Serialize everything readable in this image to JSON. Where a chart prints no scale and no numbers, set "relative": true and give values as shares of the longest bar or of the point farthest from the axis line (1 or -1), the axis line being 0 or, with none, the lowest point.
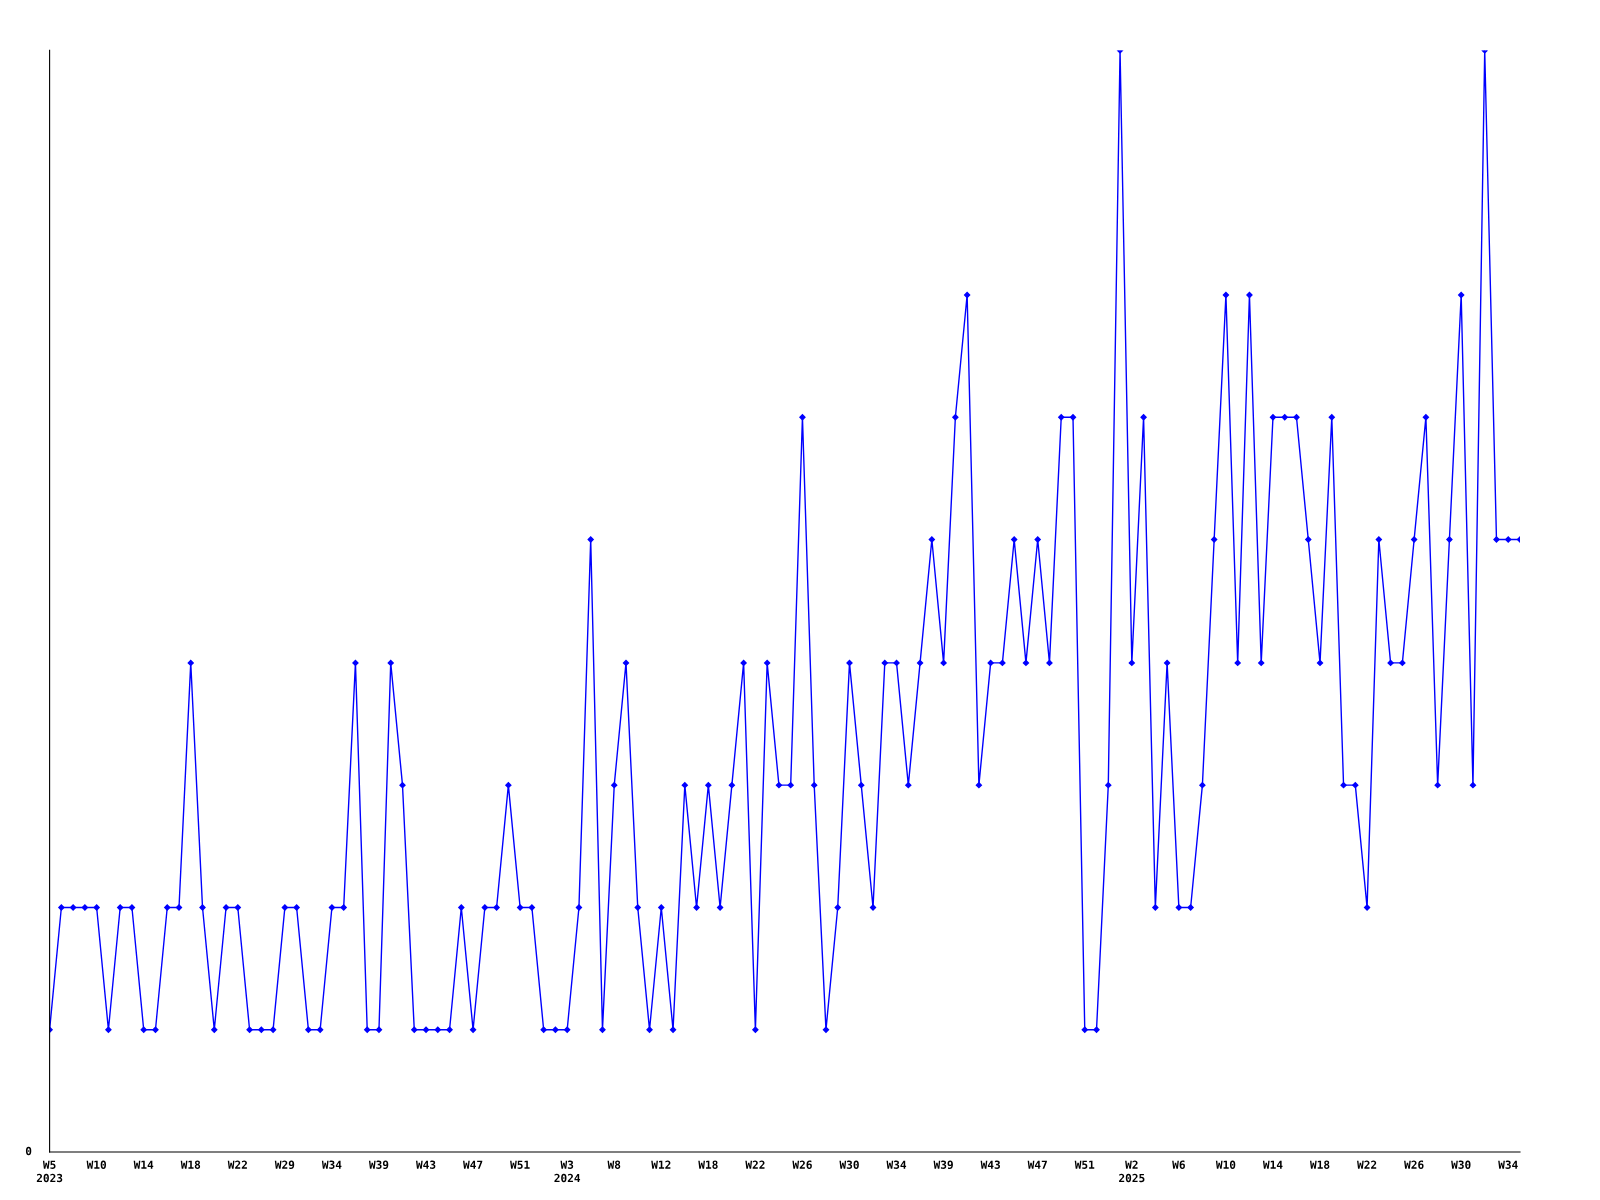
{
  "chart_data": {
    "type": "line",
    "relative": true,
    "categories": [
      "W5\n2023",
      null,
      null,
      null,
      "W10",
      null,
      null,
      null,
      "W14",
      null,
      null,
      null,
      "W18",
      null,
      null,
      null,
      "W22",
      null,
      null,
      null,
      "W29",
      null,
      null,
      null,
      "W34",
      null,
      null,
      null,
      "W39",
      null,
      null,
      null,
      "W43",
      null,
      null,
      null,
      "W47",
      null,
      null,
      null,
      "W51",
      null,
      null,
      null,
      "W3\n2024",
      null,
      null,
      null,
      "W8",
      null,
      null,
      null,
      "W12",
      null,
      null,
      null,
      "W18",
      null,
      null,
      null,
      "W22",
      null,
      null,
      null,
      "W26",
      null,
      null,
      null,
      "W30",
      null,
      null,
      null,
      "W34",
      null,
      null,
      null,
      "W39",
      null,
      null,
      null,
      "W43",
      null,
      null,
      null,
      "W47",
      null,
      null,
      null,
      "W51",
      null,
      null,
      null,
      "W2\n2025",
      null,
      null,
      null,
      "W6",
      null,
      null,
      null,
      "W10",
      null,
      null,
      null,
      "W14",
      null,
      null,
      null,
      "W18",
      null,
      null,
      null,
      "W22",
      null,
      null,
      null,
      "W26",
      null,
      null,
      null,
      "W30",
      null,
      null,
      null,
      "W34",
      null
    ],
    "series": [
      {
        "color": "#0000ff",
        "values": [
          0.111,
          0.222,
          0.222,
          0.222,
          0.222,
          0.111,
          0.222,
          0.222,
          0.111,
          0.111,
          0.222,
          0.222,
          0.444,
          0.222,
          0.111,
          0.222,
          0.222,
          0.111,
          0.111,
          0.111,
          0.222,
          0.222,
          0.111,
          0.111,
          0.222,
          0.222,
          0.444,
          0.111,
          0.111,
          0.444,
          0.333,
          0.111,
          0.111,
          0.111,
          0.111,
          0.222,
          0.111,
          0.222,
          0.222,
          0.333,
          0.222,
          0.222,
          0.111,
          0.111,
          0.111,
          0.222,
          0.556,
          0.111,
          0.333,
          0.444,
          0.222,
          0.111,
          0.222,
          0.111,
          0.333,
          0.222,
          0.333,
          0.222,
          0.333,
          0.444,
          0.111,
          0.444,
          0.333,
          0.333,
          0.667,
          0.333,
          0.111,
          0.222,
          0.444,
          0.333,
          0.222,
          0.444,
          0.444,
          0.333,
          0.444,
          0.556,
          0.444,
          0.667,
          0.778,
          0.333,
          0.444,
          0.444,
          0.556,
          0.444,
          0.556,
          0.444,
          0.667,
          0.667,
          0.111,
          0.111,
          0.333,
          1,
          0.444,
          0.667,
          0.222,
          0.444,
          0.222,
          0.222,
          0.333,
          0.556,
          0.778,
          0.444,
          0.778,
          0.444,
          0.667,
          0.667,
          0.667,
          0.556,
          0.444,
          0.667,
          0.333,
          0.333,
          0.222,
          0.556,
          0.444,
          0.444,
          0.556,
          0.667,
          0.333,
          0.556,
          0.778,
          0.333,
          1,
          0.556,
          0.556,
          0.556
        ]
      }
    ],
    "annotations": [
      "0"
    ],
    "marker": "diamond",
    "line_style": "solid",
    "grid": false
  }
}
